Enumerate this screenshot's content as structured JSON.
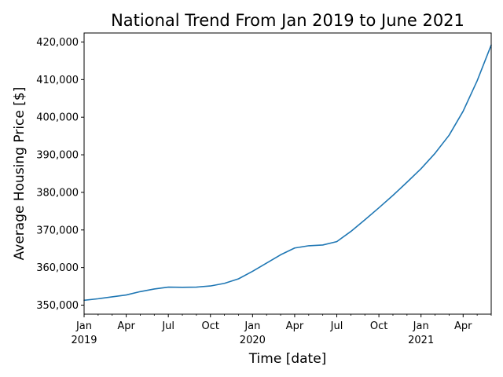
{
  "chart_data": {
    "type": "line",
    "title": "National Trend From Jan 2019 to June 2021",
    "xlabel": "Time [date]",
    "ylabel": "Average Housing Price [$]",
    "x_range": [
      "2019-01",
      "2021-06"
    ],
    "ylim": [
      347600,
      422400
    ],
    "grid": false,
    "line_color": "#1f77b4",
    "y_ticks": [
      {
        "value": 350000,
        "label": "350,000"
      },
      {
        "value": 360000,
        "label": "360,000"
      },
      {
        "value": 370000,
        "label": "370,000"
      },
      {
        "value": 380000,
        "label": "380,000"
      },
      {
        "value": 390000,
        "label": "390,000"
      },
      {
        "value": 400000,
        "label": "400,000"
      },
      {
        "value": 410000,
        "label": "410,000"
      },
      {
        "value": 420000,
        "label": "420,000"
      }
    ],
    "x_major_ticks": [
      {
        "date": "2019-01",
        "label": "Jan",
        "year": "2019"
      },
      {
        "date": "2019-04",
        "label": "Apr",
        "year": ""
      },
      {
        "date": "2019-07",
        "label": "Jul",
        "year": ""
      },
      {
        "date": "2019-10",
        "label": "Oct",
        "year": ""
      },
      {
        "date": "2020-01",
        "label": "Jan",
        "year": "2020"
      },
      {
        "date": "2020-04",
        "label": "Apr",
        "year": ""
      },
      {
        "date": "2020-07",
        "label": "Jul",
        "year": ""
      },
      {
        "date": "2020-10",
        "label": "Oct",
        "year": ""
      },
      {
        "date": "2021-01",
        "label": "Jan",
        "year": "2021"
      },
      {
        "date": "2021-04",
        "label": "Apr",
        "year": ""
      }
    ],
    "series": [
      {
        "x": [
          "2019-01",
          "2019-02",
          "2019-03",
          "2019-04",
          "2019-05",
          "2019-06",
          "2019-07",
          "2019-08",
          "2019-09",
          "2019-10",
          "2019-11",
          "2019-12",
          "2020-01",
          "2020-02",
          "2020-03",
          "2020-04",
          "2020-05",
          "2020-06",
          "2020-07",
          "2020-08",
          "2020-09",
          "2020-10",
          "2020-11",
          "2020-12",
          "2021-01",
          "2021-02",
          "2021-03",
          "2021-04",
          "2021-05",
          "2021-06"
        ],
        "values": [
          351300,
          351700,
          352200,
          352700,
          353600,
          354300,
          354800,
          354750,
          354800,
          355100,
          355800,
          357000,
          359000,
          361200,
          363400,
          365200,
          365800,
          366000,
          366900,
          369600,
          372700,
          375900,
          379200,
          382700,
          386300,
          390400,
          395200,
          401600,
          409700,
          419200
        ]
      }
    ]
  }
}
